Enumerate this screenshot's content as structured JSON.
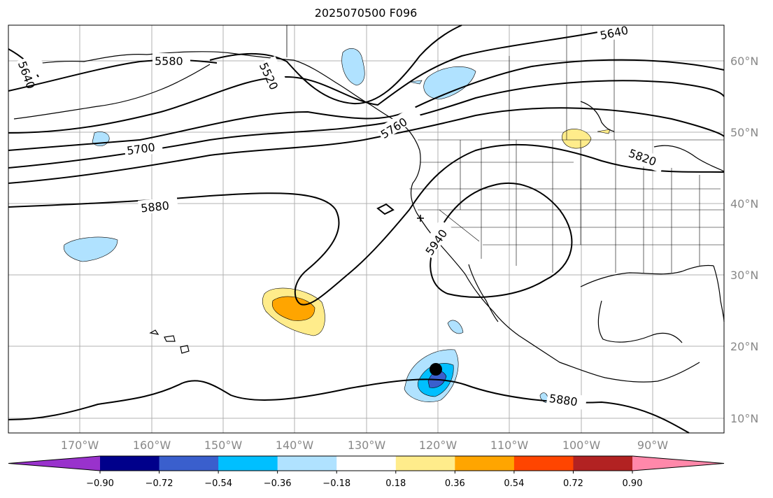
{
  "title": "2025070500 F096",
  "longitude_labels": [
    "170°W",
    "160°W",
    "150°W",
    "140°W",
    "130°W",
    "120°W",
    "110°W",
    "100°W",
    "90°W"
  ],
  "latitude_labels": [
    "60°N",
    "50°N",
    "40°N",
    "30°N",
    "20°N",
    "10°N"
  ],
  "contour_labels": [
    "5640",
    "5580",
    "5520",
    "5760",
    "5700",
    "5880",
    "5820",
    "5640",
    "5940",
    "5880"
  ],
  "colorbar": {
    "ticks": [
      "−0.90",
      "−0.72",
      "−0.54",
      "−0.36",
      "−0.18",
      "0.18",
      "0.36",
      "0.54",
      "0.72",
      "0.90"
    ],
    "colors": [
      "#9932cc",
      "#00008b",
      "#3a5fcd",
      "#00bfff",
      "#b0e2ff",
      "#ffffff",
      "#ffec8b",
      "#ffa500",
      "#ff4500",
      "#b22222",
      "#ff88aa"
    ]
  },
  "colors": {
    "coast": "#000000",
    "grid": "#b0b0b0",
    "contour": "#000000",
    "marker": "#000000"
  }
}
